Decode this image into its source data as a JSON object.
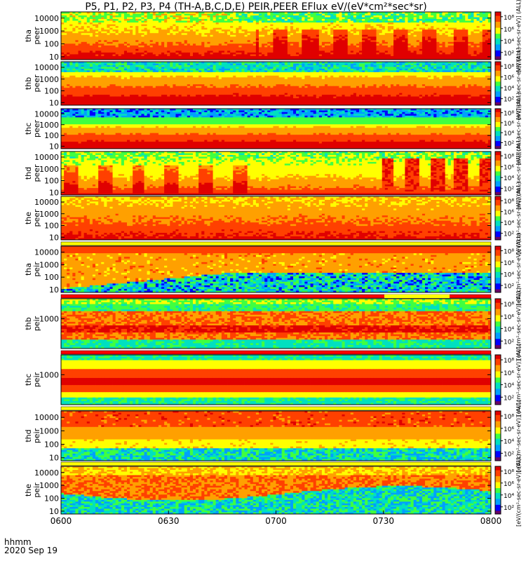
{
  "title": "P5, P1, P2, P3, P4 (TH-A,B,C,D,E) PEIR,PEER EFlux eV/(eV*cm²*sec*sr)",
  "footer": {
    "hhmm_label": "hhmm",
    "date_label": "2020 Sep 19"
  },
  "colorbar_labels": {
    "peer": "[eV/(cm²-sec-sr-eV)] (ALL)",
    "peir": "[eV/(cm²-sec-sr-eV)] (ALL)",
    "ticks": [
      "10²",
      "10⁴",
      "10⁶",
      "10⁸"
    ]
  },
  "colors": {
    "spectrum": [
      "#6a006a",
      "#0000ff",
      "#00a0ff",
      "#00e0c0",
      "#40ff40",
      "#ffff00",
      "#ffa000",
      "#ff4000",
      "#e00000"
    ],
    "background": "#ffffff",
    "bar_red": "#ff0000",
    "bar_yellow": "#ffff00"
  },
  "chart_data": {
    "type": "heatmap",
    "x_ticks": [
      "0600",
      "0630",
      "0700",
      "0730",
      "0800"
    ],
    "x_range": [
      "06:00",
      "08:00"
    ],
    "panels": [
      {
        "probe": "tha",
        "species": "peer",
        "label1": "tha",
        "label2": "peer",
        "y_scale": "log",
        "y_ticks": [
          "10000",
          "1000",
          "100",
          "10"
        ],
        "y_range": [
          6,
          30000
        ],
        "pattern": "peer-a",
        "status_bar": "white"
      },
      {
        "probe": "thb",
        "species": "peer",
        "label1": "thb",
        "label2": "peer",
        "y_scale": "log",
        "y_ticks": [
          "10000",
          "1000",
          "100",
          "10"
        ],
        "y_range": [
          6,
          30000
        ],
        "pattern": "peer-b",
        "status_bar": "white"
      },
      {
        "probe": "thc",
        "species": "peer",
        "label1": "thc",
        "label2": "peer",
        "y_scale": "log",
        "y_ticks": [
          "10000",
          "1000",
          "100",
          "10"
        ],
        "y_range": [
          6,
          30000
        ],
        "pattern": "peer-c",
        "status_bar": "white"
      },
      {
        "probe": "thd",
        "species": "peer",
        "label1": "thd",
        "label2": "peer",
        "y_scale": "log",
        "y_ticks": [
          "10000",
          "1000",
          "100",
          "10"
        ],
        "y_range": [
          6,
          30000
        ],
        "pattern": "peer-d",
        "status_bar": "white"
      },
      {
        "probe": "the",
        "species": "peer",
        "label1": "the",
        "label2": "peer",
        "y_scale": "log",
        "y_ticks": [
          "10000",
          "1000",
          "100",
          "10"
        ],
        "y_range": [
          6,
          30000
        ],
        "pattern": "peer-e",
        "status_bar": "yellow"
      },
      {
        "probe": "tha",
        "species": "peir",
        "label1": "tha",
        "label2": "peir",
        "y_scale": "log",
        "y_ticks": [
          "10000",
          "1000",
          "100",
          "10"
        ],
        "y_range": [
          6,
          30000
        ],
        "pattern": "peir-a",
        "status_bar": "red-yellow"
      },
      {
        "probe": "thb",
        "species": "peir",
        "label1": "thb",
        "label2": "peir",
        "y_scale": "log",
        "y_ticks": [
          "1000"
        ],
        "y_range": [
          6,
          30000
        ],
        "pattern": "peir-b",
        "status_bar": "red"
      },
      {
        "probe": "thc",
        "species": "peir",
        "label1": "thc",
        "label2": "peir",
        "y_scale": "log",
        "y_ticks": [
          "1000"
        ],
        "y_range": [
          6,
          30000
        ],
        "pattern": "peir-c",
        "status_bar": "yellow"
      },
      {
        "probe": "thd",
        "species": "peir",
        "label1": "thd",
        "label2": "peir",
        "y_scale": "log",
        "y_ticks": [
          "10000",
          "1000",
          "100",
          "10"
        ],
        "y_range": [
          6,
          30000
        ],
        "pattern": "peir-d",
        "status_bar": "yellow"
      },
      {
        "probe": "the",
        "species": "peir",
        "label1": "the",
        "label2": "peir",
        "y_scale": "log",
        "y_ticks": [
          "10000",
          "1000",
          "100",
          "10"
        ],
        "y_range": [
          6,
          30000
        ],
        "pattern": "peir-e",
        "status_bar": "none"
      }
    ],
    "colorbar": {
      "scale": "log",
      "range": [
        10,
        1000000000
      ]
    }
  }
}
